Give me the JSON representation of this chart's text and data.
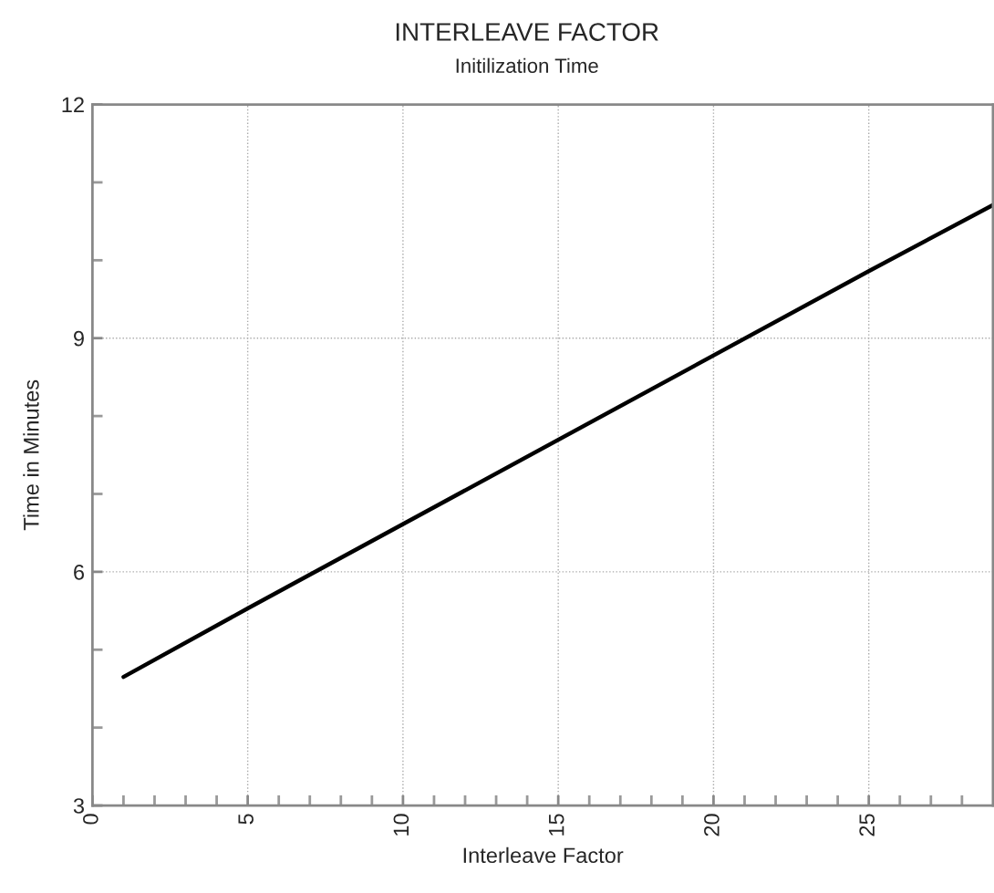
{
  "chart_data": {
    "type": "line",
    "title": "INTERLEAVE FACTOR",
    "subtitle": "Initilization Time",
    "xlabel": "Interleave Factor",
    "ylabel": "Time in Minutes",
    "series": [
      {
        "color": "#000000",
        "x": [
          1,
          5,
          25,
          29
        ],
        "values": [
          4.65,
          5.53,
          9.86,
          10.71
        ]
      }
    ],
    "xlim": [
      0,
      29
    ],
    "ylim": [
      3,
      12
    ],
    "xticks": [
      0,
      {
        "value": 1,
        "label": null
      },
      {
        "value": 2,
        "label": null
      },
      {
        "value": 3,
        "label": null
      },
      {
        "value": 4,
        "label": null
      },
      5,
      {
        "value": 6,
        "label": null
      },
      {
        "value": 7,
        "label": null
      },
      {
        "value": 8,
        "label": null
      },
      {
        "value": 9,
        "label": null
      },
      10,
      {
        "value": 11,
        "label": null
      },
      {
        "value": 12,
        "label": null
      },
      {
        "value": 13,
        "label": null
      },
      {
        "value": 14,
        "label": null
      },
      15,
      {
        "value": 16,
        "label": null
      },
      {
        "value": 17,
        "label": null
      },
      {
        "value": 18,
        "label": null
      },
      {
        "value": 19,
        "label": null
      },
      20,
      {
        "value": 21,
        "label": null
      },
      {
        "value": 22,
        "label": null
      },
      {
        "value": 23,
        "label": null
      },
      {
        "value": 24,
        "label": null
      },
      25,
      {
        "value": 26,
        "label": null
      },
      {
        "value": 27,
        "label": null
      },
      {
        "value": 28,
        "label": null
      }
    ],
    "yticks": [
      3,
      {
        "value": 4,
        "label": null
      },
      {
        "value": 5,
        "label": null
      },
      6,
      {
        "value": 7,
        "label": null
      },
      {
        "value": 8,
        "label": null
      },
      9,
      {
        "value": 10,
        "label": null
      },
      {
        "value": 11,
        "label": null
      },
      12
    ],
    "grid": true,
    "marker": "none",
    "line_style": "solid"
  }
}
